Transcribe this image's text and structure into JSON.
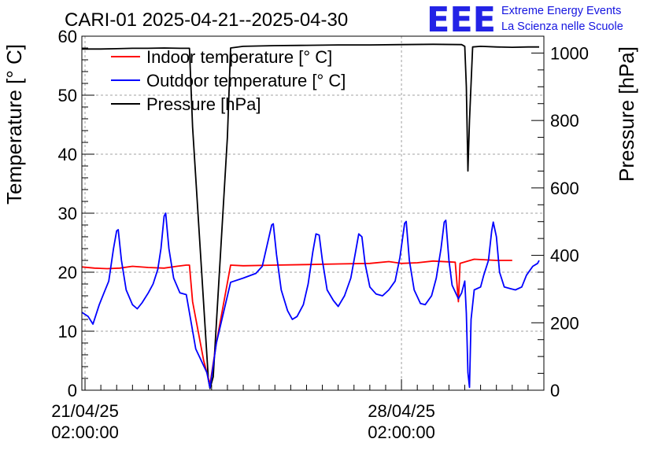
{
  "header": {
    "title": "CARI-01 2025-04-21--2025-04-30",
    "logo_text": "EEE",
    "org_line1": "Extreme Energy Events",
    "org_line2": "La Scienza nelle Scuole"
  },
  "chart_data": {
    "type": "line",
    "title": "CARI-01 2025-04-21--2025-04-30",
    "xlabel": "",
    "ylabel": "Temperature [° C]",
    "y2label": "Pressure [hPa]",
    "ylim": [
      0,
      60
    ],
    "y2lim": [
      0,
      1050
    ],
    "xlim": [
      -0.1,
      14.5
    ],
    "x_ticks": [
      {
        "x": 0,
        "line1": "21/04/25",
        "line2": "02:00:00"
      },
      {
        "x": 10,
        "line1": "28/04/25",
        "line2": "02:00:00"
      }
    ],
    "y_ticks": [
      0,
      10,
      20,
      30,
      40,
      50,
      60
    ],
    "y2_ticks": [
      0,
      200,
      400,
      600,
      800,
      1000
    ],
    "grid": true,
    "legend_position": "top-left",
    "series": [
      {
        "name": "Indoor temperature [° C]",
        "axis": "left",
        "color": "#ff0000",
        "points": [
          [
            -0.1,
            20.9
          ],
          [
            0.3,
            20.7
          ],
          [
            0.7,
            20.6
          ],
          [
            1.1,
            20.7
          ],
          [
            1.5,
            21.0
          ],
          [
            2.0,
            20.8
          ],
          [
            2.5,
            20.7
          ],
          [
            2.9,
            21.0
          ],
          [
            3.2,
            21.2
          ],
          [
            3.3,
            21.2
          ],
          [
            3.4,
            15.0
          ],
          [
            3.75,
            5.0
          ],
          [
            3.95,
            1.0
          ],
          [
            4.15,
            8.0
          ],
          [
            4.6,
            21.2
          ],
          [
            5.0,
            21.1
          ],
          [
            6.0,
            21.2
          ],
          [
            7.0,
            21.3
          ],
          [
            8.0,
            21.4
          ],
          [
            9.0,
            21.5
          ],
          [
            9.6,
            21.8
          ],
          [
            10.0,
            21.5
          ],
          [
            10.5,
            21.6
          ],
          [
            11.0,
            21.9
          ],
          [
            11.7,
            21.7
          ],
          [
            11.8,
            15.0
          ],
          [
            11.85,
            21.5
          ],
          [
            12.3,
            22.2
          ],
          [
            13.0,
            22.0
          ],
          [
            13.5,
            22.0
          ]
        ]
      },
      {
        "name": "Outdoor temperature [° C]",
        "axis": "left",
        "color": "#0000ff",
        "points": [
          [
            -0.1,
            13.2
          ],
          [
            0.1,
            12.5
          ],
          [
            0.25,
            11.2
          ],
          [
            0.45,
            14.5
          ],
          [
            0.6,
            16.5
          ],
          [
            0.75,
            18.5
          ],
          [
            0.9,
            24.0
          ],
          [
            1.0,
            27.0
          ],
          [
            1.05,
            27.2
          ],
          [
            1.15,
            22.0
          ],
          [
            1.3,
            17.0
          ],
          [
            1.5,
            14.5
          ],
          [
            1.65,
            13.8
          ],
          [
            1.8,
            14.8
          ],
          [
            2.0,
            16.5
          ],
          [
            2.15,
            18.0
          ],
          [
            2.3,
            20.5
          ],
          [
            2.4,
            24.0
          ],
          [
            2.5,
            29.5
          ],
          [
            2.55,
            30.0
          ],
          [
            2.65,
            24.0
          ],
          [
            2.8,
            19.0
          ],
          [
            3.0,
            16.5
          ],
          [
            3.2,
            16.2
          ],
          [
            3.5,
            7.0
          ],
          [
            3.85,
            3.0
          ],
          [
            3.95,
            0.4
          ],
          [
            4.15,
            8.0
          ],
          [
            4.6,
            18.3
          ],
          [
            5.0,
            19.0
          ],
          [
            5.4,
            19.8
          ],
          [
            5.6,
            21.0
          ],
          [
            5.75,
            24.5
          ],
          [
            5.9,
            28.0
          ],
          [
            5.95,
            28.2
          ],
          [
            6.05,
            23.0
          ],
          [
            6.2,
            17.0
          ],
          [
            6.4,
            13.5
          ],
          [
            6.55,
            12.0
          ],
          [
            6.7,
            12.5
          ],
          [
            6.9,
            14.5
          ],
          [
            7.05,
            18.0
          ],
          [
            7.2,
            23.5
          ],
          [
            7.3,
            26.5
          ],
          [
            7.4,
            26.3
          ],
          [
            7.5,
            22.0
          ],
          [
            7.65,
            17.0
          ],
          [
            7.85,
            15.2
          ],
          [
            8.0,
            14.2
          ],
          [
            8.2,
            16.0
          ],
          [
            8.4,
            19.0
          ],
          [
            8.55,
            23.5
          ],
          [
            8.65,
            26.5
          ],
          [
            8.75,
            26.0
          ],
          [
            8.85,
            21.5
          ],
          [
            9.0,
            17.5
          ],
          [
            9.2,
            16.3
          ],
          [
            9.4,
            16.0
          ],
          [
            9.6,
            17.0
          ],
          [
            9.8,
            18.5
          ],
          [
            9.95,
            22.5
          ],
          [
            10.1,
            28.3
          ],
          [
            10.15,
            28.6
          ],
          [
            10.25,
            22.0
          ],
          [
            10.4,
            17.0
          ],
          [
            10.6,
            14.7
          ],
          [
            10.75,
            14.5
          ],
          [
            10.95,
            16.0
          ],
          [
            11.1,
            19.0
          ],
          [
            11.25,
            24.0
          ],
          [
            11.35,
            28.5
          ],
          [
            11.4,
            28.8
          ],
          [
            11.5,
            22.0
          ],
          [
            11.6,
            17.8
          ],
          [
            11.8,
            15.5
          ],
          [
            11.9,
            16.5
          ],
          [
            12.0,
            18.5
          ],
          [
            12.05,
            13.0
          ],
          [
            12.1,
            3.0
          ],
          [
            12.15,
            0.5
          ],
          [
            12.2,
            12.0
          ],
          [
            12.3,
            17.0
          ],
          [
            12.5,
            17.5
          ],
          [
            12.6,
            19.5
          ],
          [
            12.75,
            22.0
          ],
          [
            12.85,
            27.0
          ],
          [
            12.9,
            28.5
          ],
          [
            13.0,
            26.0
          ],
          [
            13.1,
            20.0
          ],
          [
            13.25,
            17.5
          ],
          [
            13.45,
            17.2
          ],
          [
            13.6,
            17.0
          ],
          [
            13.8,
            17.5
          ],
          [
            13.95,
            19.5
          ],
          [
            14.15,
            21.0
          ],
          [
            14.3,
            21.5
          ],
          [
            14.35,
            22.0
          ]
        ]
      },
      {
        "name": "Pressure [hPa]",
        "axis": "right",
        "color": "#000000",
        "points": [
          [
            -0.1,
            1012
          ],
          [
            0.5,
            1012
          ],
          [
            1.0,
            1013
          ],
          [
            1.5,
            1014
          ],
          [
            2.0,
            1014
          ],
          [
            2.5,
            1015
          ],
          [
            3.0,
            1014
          ],
          [
            3.3,
            1014
          ],
          [
            3.4,
            780
          ],
          [
            3.9,
            30
          ],
          [
            3.95,
            5
          ],
          [
            4.05,
            40
          ],
          [
            4.5,
            750
          ],
          [
            4.6,
            1015
          ],
          [
            5.0,
            1020
          ],
          [
            6.0,
            1022
          ],
          [
            7.0,
            1023
          ],
          [
            8.0,
            1024
          ],
          [
            9.0,
            1024
          ],
          [
            10.0,
            1025
          ],
          [
            11.0,
            1026
          ],
          [
            11.9,
            1025
          ],
          [
            12.0,
            1020
          ],
          [
            12.05,
            900
          ],
          [
            12.1,
            650
          ],
          [
            12.15,
            800
          ],
          [
            12.25,
            1018
          ],
          [
            12.5,
            1020
          ],
          [
            13.0,
            1018
          ],
          [
            13.5,
            1017
          ],
          [
            14.0,
            1018
          ],
          [
            14.35,
            1018
          ]
        ]
      }
    ]
  }
}
